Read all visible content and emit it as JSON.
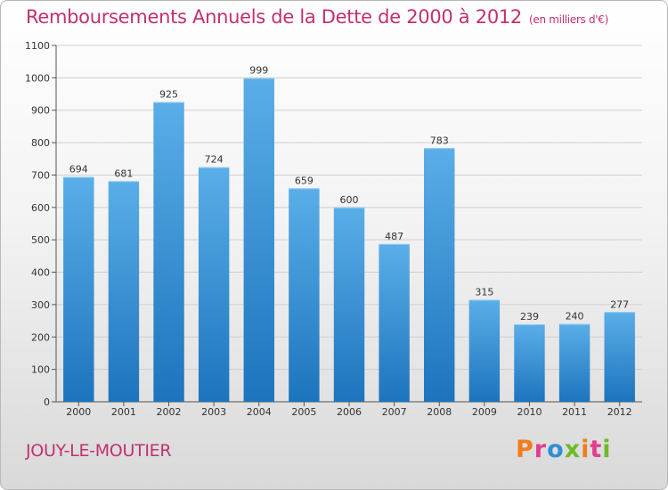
{
  "header": {
    "title": "Remboursements Annuels de la Dette de 2000 à 2012",
    "subtitle": "(en milliers d'€)"
  },
  "footer": {
    "city": "JOUY-LE-MOUTIER",
    "logo": {
      "letters": [
        "P",
        "r",
        "o",
        "x",
        "i",
        "t",
        "i"
      ],
      "colors": [
        "#f07d1a",
        "#e23d8f",
        "#2f8fd6",
        "#6cba2a",
        "#f07d1a",
        "#e23d8f",
        "#6cba2a"
      ]
    }
  },
  "colors": {
    "title": "#c2306f",
    "bar_top": "#5aaee8",
    "bar_bottom": "#1c74bd",
    "grid": "#cfcfcf"
  },
  "chart_data": {
    "type": "bar",
    "categories": [
      "2000",
      "2001",
      "2002",
      "2003",
      "2004",
      "2005",
      "2006",
      "2007",
      "2008",
      "2009",
      "2010",
      "2011",
      "2012"
    ],
    "values": [
      694,
      681,
      925,
      724,
      999,
      659,
      600,
      487,
      783,
      315,
      239,
      240,
      277
    ],
    "yticks": [
      0,
      100,
      200,
      300,
      400,
      500,
      600,
      700,
      800,
      900,
      1000,
      1100
    ],
    "ylim": [
      0,
      1100
    ],
    "grid": true,
    "title": "Remboursements Annuels de la Dette de 2000 à 2012",
    "subtitle": "(en milliers d'€)"
  }
}
